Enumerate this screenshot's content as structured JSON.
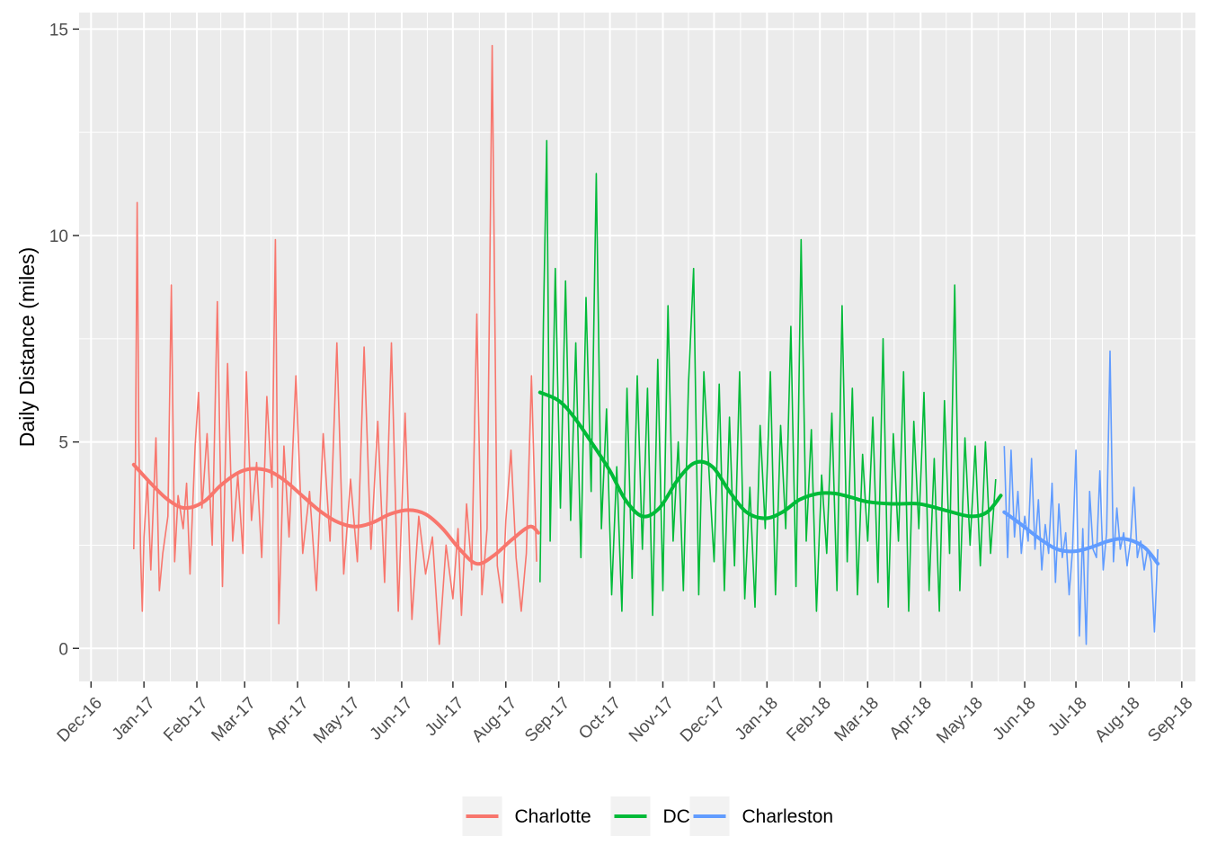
{
  "chart_data": {
    "type": "line",
    "title": "",
    "xlabel": "",
    "ylabel": "Daily Distance (miles)",
    "xlim": [
      "2016-11-24",
      "2018-09-09"
    ],
    "ylim": [
      -0.8,
      15.4
    ],
    "y_ticks": [
      0,
      5,
      10,
      15
    ],
    "x_ticks": [
      {
        "date": "2016-12-01",
        "label": "Dec-16"
      },
      {
        "date": "2017-01-01",
        "label": "Jan-17"
      },
      {
        "date": "2017-02-01",
        "label": "Feb-17"
      },
      {
        "date": "2017-03-01",
        "label": "Mar-17"
      },
      {
        "date": "2017-04-01",
        "label": "Apr-17"
      },
      {
        "date": "2017-05-01",
        "label": "May-17"
      },
      {
        "date": "2017-06-01",
        "label": "Jun-17"
      },
      {
        "date": "2017-07-01",
        "label": "Jul-17"
      },
      {
        "date": "2017-08-01",
        "label": "Aug-17"
      },
      {
        "date": "2017-09-01",
        "label": "Sep-17"
      },
      {
        "date": "2017-10-01",
        "label": "Oct-17"
      },
      {
        "date": "2017-11-01",
        "label": "Nov-17"
      },
      {
        "date": "2017-12-01",
        "label": "Dec-17"
      },
      {
        "date": "2018-01-01",
        "label": "Jan-18"
      },
      {
        "date": "2018-02-01",
        "label": "Feb-18"
      },
      {
        "date": "2018-03-01",
        "label": "Mar-18"
      },
      {
        "date": "2018-04-01",
        "label": "Apr-18"
      },
      {
        "date": "2018-05-01",
        "label": "May-18"
      },
      {
        "date": "2018-06-01",
        "label": "Jun-18"
      },
      {
        "date": "2018-07-01",
        "label": "Jul-18"
      },
      {
        "date": "2018-08-01",
        "label": "Aug-18"
      },
      {
        "date": "2018-09-01",
        "label": "Sep-18"
      }
    ],
    "grid": true,
    "legend_position": "bottom",
    "series": [
      {
        "name": "Charlotte",
        "color": "#F8766D",
        "x": [
          "2016-12-26",
          "2016-12-27",
          "2016-12-28",
          "2016-12-29",
          "2016-12-30",
          "2016-12-31",
          "2017-01-01",
          "2017-01-03",
          "2017-01-05",
          "2017-01-08",
          "2017-01-10",
          "2017-01-12",
          "2017-01-15",
          "2017-01-17",
          "2017-01-19",
          "2017-01-21",
          "2017-01-24",
          "2017-01-26",
          "2017-01-28",
          "2017-01-31",
          "2017-02-02",
          "2017-02-04",
          "2017-02-07",
          "2017-02-10",
          "2017-02-13",
          "2017-02-16",
          "2017-02-19",
          "2017-02-22",
          "2017-02-25",
          "2017-02-28",
          "2017-03-02",
          "2017-03-05",
          "2017-03-08",
          "2017-03-11",
          "2017-03-14",
          "2017-03-17",
          "2017-03-19",
          "2017-03-21",
          "2017-03-24",
          "2017-03-27",
          "2017-03-31",
          "2017-04-04",
          "2017-04-08",
          "2017-04-12",
          "2017-04-16",
          "2017-04-20",
          "2017-04-24",
          "2017-04-28",
          "2017-05-02",
          "2017-05-06",
          "2017-05-10",
          "2017-05-14",
          "2017-05-18",
          "2017-05-22",
          "2017-05-26",
          "2017-05-30",
          "2017-06-03",
          "2017-06-07",
          "2017-06-11",
          "2017-06-15",
          "2017-06-19",
          "2017-06-23",
          "2017-06-27",
          "2017-07-01",
          "2017-07-04",
          "2017-07-06",
          "2017-07-09",
          "2017-07-12",
          "2017-07-15",
          "2017-07-18",
          "2017-07-21",
          "2017-07-24",
          "2017-07-27",
          "2017-07-30",
          "2017-08-01",
          "2017-08-04",
          "2017-08-07",
          "2017-08-10",
          "2017-08-13",
          "2017-08-16",
          "2017-08-19"
        ],
        "values": [
          2.4,
          4.6,
          10.8,
          5.0,
          2.3,
          0.9,
          2.7,
          4.1,
          1.9,
          5.1,
          1.4,
          2.3,
          3.2,
          8.8,
          2.1,
          3.7,
          2.9,
          4.0,
          1.8,
          4.9,
          6.2,
          3.4,
          5.2,
          2.5,
          8.4,
          1.5,
          6.9,
          2.6,
          4.2,
          2.3,
          6.7,
          3.1,
          4.5,
          2.2,
          6.1,
          3.9,
          9.9,
          0.6,
          4.9,
          2.7,
          6.6,
          2.3,
          3.8,
          1.4,
          5.2,
          2.6,
          7.4,
          1.8,
          4.1,
          2.1,
          7.3,
          2.4,
          5.5,
          1.6,
          7.4,
          0.9,
          5.7,
          0.7,
          3.2,
          1.8,
          2.7,
          0.1,
          2.5,
          1.2,
          2.9,
          0.8,
          3.5,
          1.9,
          8.1,
          1.3,
          2.9,
          14.6,
          2.0,
          1.1,
          3.1,
          4.8,
          2.2,
          0.9,
          2.3,
          6.6,
          2.1
        ]
      },
      {
        "name": "DC",
        "color": "#00BA38",
        "x": [
          "2017-08-21",
          "2017-08-23",
          "2017-08-25",
          "2017-08-27",
          "2017-08-30",
          "2017-09-02",
          "2017-09-05",
          "2017-09-08",
          "2017-09-11",
          "2017-09-14",
          "2017-09-17",
          "2017-09-20",
          "2017-09-23",
          "2017-09-26",
          "2017-09-29",
          "2017-10-02",
          "2017-10-05",
          "2017-10-08",
          "2017-10-11",
          "2017-10-14",
          "2017-10-17",
          "2017-10-20",
          "2017-10-23",
          "2017-10-26",
          "2017-10-29",
          "2017-11-01",
          "2017-11-04",
          "2017-11-07",
          "2017-11-10",
          "2017-11-13",
          "2017-11-16",
          "2017-11-19",
          "2017-11-22",
          "2017-11-25",
          "2017-11-28",
          "2017-12-01",
          "2017-12-04",
          "2017-12-07",
          "2017-12-10",
          "2017-12-13",
          "2017-12-16",
          "2017-12-19",
          "2017-12-22",
          "2017-12-25",
          "2017-12-28",
          "2017-12-31",
          "2018-01-03",
          "2018-01-06",
          "2018-01-09",
          "2018-01-12",
          "2018-01-15",
          "2018-01-18",
          "2018-01-21",
          "2018-01-24",
          "2018-01-27",
          "2018-01-30",
          "2018-02-02",
          "2018-02-05",
          "2018-02-08",
          "2018-02-11",
          "2018-02-14",
          "2018-02-17",
          "2018-02-20",
          "2018-02-23",
          "2018-02-26",
          "2018-03-01",
          "2018-03-04",
          "2018-03-07",
          "2018-03-10",
          "2018-03-13",
          "2018-03-16",
          "2018-03-19",
          "2018-03-22",
          "2018-03-25",
          "2018-03-28",
          "2018-03-31",
          "2018-04-03",
          "2018-04-06",
          "2018-04-09",
          "2018-04-12",
          "2018-04-15",
          "2018-04-18",
          "2018-04-21",
          "2018-04-24",
          "2018-04-27",
          "2018-04-30",
          "2018-05-03",
          "2018-05-06",
          "2018-05-09",
          "2018-05-12",
          "2018-05-15"
        ],
        "values": [
          1.6,
          7.9,
          12.3,
          2.6,
          9.2,
          3.4,
          8.9,
          3.1,
          7.4,
          2.2,
          8.5,
          3.8,
          11.5,
          2.9,
          5.8,
          1.3,
          4.4,
          0.9,
          6.3,
          1.7,
          6.6,
          2.4,
          6.3,
          0.8,
          7.0,
          1.4,
          8.3,
          2.6,
          5.0,
          1.4,
          6.4,
          9.2,
          1.3,
          6.7,
          4.3,
          2.1,
          6.4,
          1.4,
          5.6,
          2.0,
          6.7,
          1.2,
          3.9,
          1.0,
          5.4,
          2.9,
          6.7,
          1.3,
          5.4,
          2.9,
          7.8,
          1.5,
          9.9,
          2.6,
          5.3,
          0.9,
          4.2,
          2.3,
          5.7,
          1.4,
          8.3,
          2.1,
          6.3,
          1.3,
          4.7,
          2.6,
          5.6,
          1.6,
          7.5,
          1.0,
          5.2,
          2.6,
          6.7,
          0.9,
          5.5,
          2.9,
          6.2,
          1.4,
          4.6,
          0.9,
          6.0,
          2.3,
          8.8,
          1.4,
          5.1,
          2.5,
          4.9,
          2.0,
          5.0,
          2.3,
          4.1
        ]
      },
      {
        "name": "Charleston",
        "color": "#619CFF",
        "x": [
          "2018-05-20",
          "2018-05-22",
          "2018-05-24",
          "2018-05-26",
          "2018-05-28",
          "2018-05-30",
          "2018-06-01",
          "2018-06-03",
          "2018-06-05",
          "2018-06-07",
          "2018-06-09",
          "2018-06-11",
          "2018-06-13",
          "2018-06-15",
          "2018-06-17",
          "2018-06-19",
          "2018-06-21",
          "2018-06-23",
          "2018-06-25",
          "2018-06-27",
          "2018-06-29",
          "2018-07-01",
          "2018-07-03",
          "2018-07-05",
          "2018-07-07",
          "2018-07-09",
          "2018-07-11",
          "2018-07-13",
          "2018-07-15",
          "2018-07-17",
          "2018-07-19",
          "2018-07-21",
          "2018-07-23",
          "2018-07-25",
          "2018-07-27",
          "2018-07-29",
          "2018-07-31",
          "2018-08-02",
          "2018-08-04",
          "2018-08-06",
          "2018-08-08",
          "2018-08-10",
          "2018-08-12",
          "2018-08-14",
          "2018-08-16",
          "2018-08-18"
        ],
        "values": [
          4.9,
          2.2,
          4.8,
          2.7,
          3.8,
          2.3,
          3.2,
          2.6,
          4.6,
          2.4,
          3.6,
          1.9,
          3.0,
          2.3,
          4.0,
          1.6,
          3.5,
          2.2,
          2.8,
          1.3,
          2.4,
          4.8,
          0.3,
          2.9,
          0.1,
          3.8,
          2.4,
          2.2,
          4.3,
          1.9,
          2.8,
          7.2,
          2.1,
          3.4,
          2.4,
          2.8,
          2.0,
          2.6,
          3.9,
          2.2,
          2.6,
          1.9,
          2.4,
          2.1,
          0.4,
          2.4
        ]
      }
    ],
    "smooth": [
      {
        "name": "Charlotte",
        "color": "#F8766D",
        "x": [
          "2016-12-26",
          "2017-01-05",
          "2017-01-15",
          "2017-01-25",
          "2017-02-05",
          "2017-02-15",
          "2017-02-25",
          "2017-03-05",
          "2017-03-15",
          "2017-03-25",
          "2017-04-05",
          "2017-04-15",
          "2017-04-25",
          "2017-05-05",
          "2017-05-15",
          "2017-05-25",
          "2017-06-05",
          "2017-06-15",
          "2017-06-25",
          "2017-07-05",
          "2017-07-15",
          "2017-07-25",
          "2017-08-05",
          "2017-08-15",
          "2017-08-20"
        ],
        "values": [
          4.45,
          4.0,
          3.6,
          3.4,
          3.55,
          3.95,
          4.25,
          4.35,
          4.3,
          4.05,
          3.65,
          3.3,
          3.05,
          2.95,
          3.05,
          3.25,
          3.35,
          3.25,
          2.9,
          2.4,
          2.05,
          2.25,
          2.65,
          2.95,
          2.8
        ]
      },
      {
        "name": "DC",
        "color": "#00BA38",
        "x": [
          "2017-08-21",
          "2017-09-01",
          "2017-09-10",
          "2017-09-20",
          "2017-10-01",
          "2017-10-10",
          "2017-10-20",
          "2017-10-30",
          "2017-11-10",
          "2017-11-20",
          "2017-11-30",
          "2017-12-10",
          "2017-12-20",
          "2017-12-31",
          "2018-01-10",
          "2018-01-20",
          "2018-01-31",
          "2018-02-10",
          "2018-02-20",
          "2018-03-01",
          "2018-03-15",
          "2018-03-31",
          "2018-04-15",
          "2018-04-30",
          "2018-05-10",
          "2018-05-18"
        ],
        "values": [
          6.2,
          6.0,
          5.6,
          5.0,
          4.3,
          3.6,
          3.2,
          3.4,
          4.1,
          4.5,
          4.4,
          3.8,
          3.3,
          3.15,
          3.3,
          3.6,
          3.75,
          3.75,
          3.65,
          3.55,
          3.5,
          3.5,
          3.35,
          3.2,
          3.3,
          3.7
        ]
      },
      {
        "name": "Charleston",
        "color": "#619CFF",
        "x": [
          "2018-05-20",
          "2018-05-30",
          "2018-06-10",
          "2018-06-20",
          "2018-06-30",
          "2018-07-10",
          "2018-07-20",
          "2018-07-30",
          "2018-08-10",
          "2018-08-18"
        ],
        "values": [
          3.3,
          3.0,
          2.65,
          2.4,
          2.35,
          2.45,
          2.6,
          2.65,
          2.45,
          2.05
        ]
      }
    ],
    "legend": [
      {
        "label": "Charlotte",
        "color": "#F8766D"
      },
      {
        "label": "DC",
        "color": "#00BA38"
      },
      {
        "label": "Charleston",
        "color": "#619CFF"
      }
    ]
  }
}
